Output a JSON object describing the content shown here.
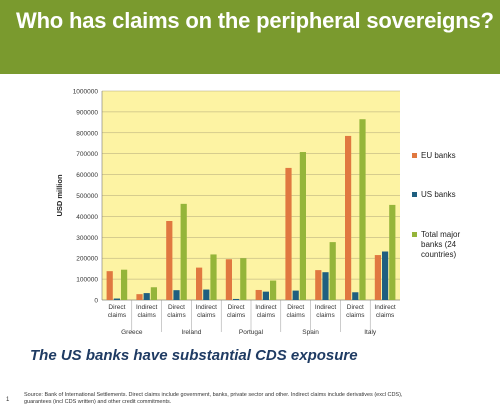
{
  "slide": {
    "title": "Who has claims on the peripheral sovereigns?",
    "subtitle": "The US banks have substantial CDS exposure",
    "slide_number": "1",
    "source_line1": "Source: Bank of International Settlements. Direct claims include government, banks, private sector and other. Indirect claims include derivatives (excl CDS),",
    "source_line2": "guarantees (incl CDS written) and other credit commitments."
  },
  "colors": {
    "header": "#7a9a2e",
    "plot_background": "#fdf3a3",
    "eu_banks": "#e07840",
    "us_banks": "#1f5f80",
    "total_major": "#95b53a"
  },
  "chart_data": {
    "type": "bar",
    "ylabel": "USD million",
    "ylim": [
      0,
      1000000
    ],
    "yticks": [
      "0",
      "100000",
      "200000",
      "300000",
      "400000",
      "500000",
      "600000",
      "700000",
      "800000",
      "900000",
      "1000000"
    ],
    "grid": true,
    "legend_position": "right",
    "categories": [
      {
        "group": "Greece",
        "label": [
          "Direct",
          "claims"
        ]
      },
      {
        "group": "Greece",
        "label": [
          "Indirect",
          "claims"
        ]
      },
      {
        "group": "Ireland",
        "label": [
          "Direct",
          "claims"
        ]
      },
      {
        "group": "Ireland",
        "label": [
          "Indirect",
          "claims"
        ]
      },
      {
        "group": "Portugal",
        "label": [
          "Direct",
          "claims"
        ]
      },
      {
        "group": "Portugal",
        "label": [
          "Indirect",
          "claims"
        ]
      },
      {
        "group": "Spain",
        "label": [
          "Direct",
          "claims"
        ]
      },
      {
        "group": "Spain",
        "label": [
          "Indirect",
          "claims"
        ]
      },
      {
        "group": "Italy",
        "label": [
          "Direct",
          "claims"
        ]
      },
      {
        "group": "Italy",
        "label": [
          "Indirect",
          "claims"
        ]
      }
    ],
    "groups": [
      "Greece",
      "Ireland",
      "Portugal",
      "Spain",
      "Italy"
    ],
    "series": [
      {
        "name": "EU banks",
        "legend_lines": [
          "EU banks"
        ],
        "values": [
          138000,
          28000,
          378000,
          155000,
          195000,
          48000,
          632000,
          143000,
          785000,
          215000
        ]
      },
      {
        "name": "US banks",
        "legend_lines": [
          "US banks"
        ],
        "values": [
          7000,
          33000,
          47000,
          50000,
          5000,
          40000,
          45000,
          133000,
          37000,
          232000
        ]
      },
      {
        "name": "Total major banks (24 countries)",
        "legend_lines": [
          "Total major",
          "banks (24",
          "countries)"
        ],
        "values": [
          145000,
          61000,
          460000,
          218000,
          200000,
          93000,
          708000,
          277000,
          865000,
          455000
        ]
      }
    ]
  }
}
